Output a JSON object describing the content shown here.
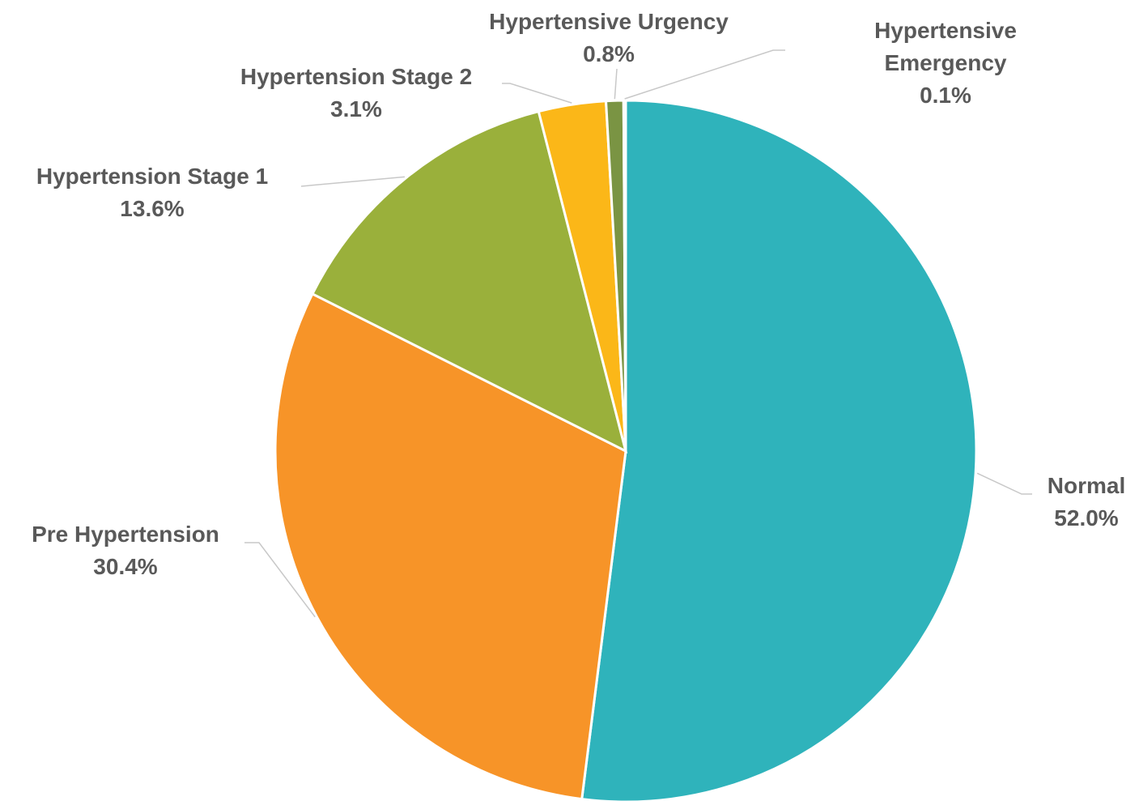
{
  "chart_data": {
    "type": "pie",
    "categories": [
      "Normal",
      "Pre Hypertension",
      "Hypertension Stage 1",
      "Hypertension Stage 2",
      "Hypertensive Urgency",
      "Hypertensive Emergency"
    ],
    "values": [
      52.0,
      30.4,
      13.6,
      3.1,
      0.8,
      0.1
    ],
    "value_labels": [
      "52.0%",
      "30.4%",
      "13.6%",
      "3.1%",
      "0.8%",
      "0.1%"
    ],
    "colors": [
      "#2fb3bb",
      "#f79428",
      "#9ab03b",
      "#fbb718",
      "#7a9443",
      "#35779c"
    ]
  }
}
